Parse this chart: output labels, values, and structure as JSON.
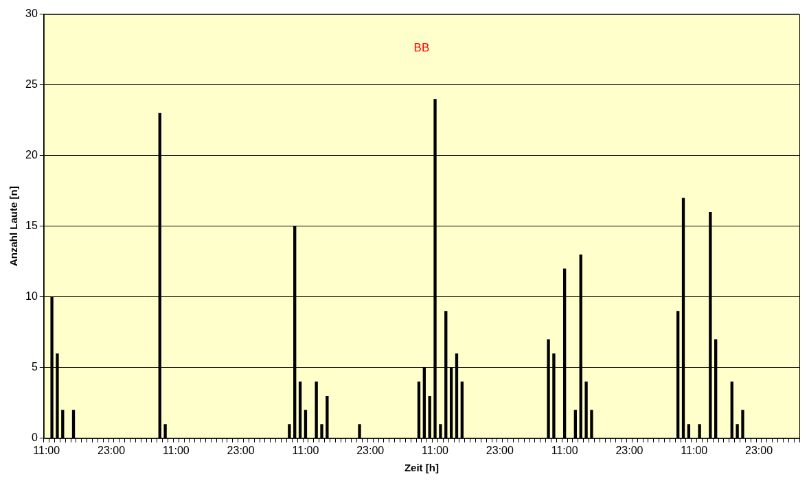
{
  "chart_data": {
    "type": "bar",
    "title": "BB",
    "xlabel": "Zeit [h]",
    "ylabel": "Anzahl Laute [n]",
    "categories": [
      "11:00",
      null,
      null,
      null,
      null,
      null,
      null,
      null,
      null,
      null,
      null,
      null,
      "23:00",
      null,
      null,
      null,
      null,
      null,
      null,
      null,
      null,
      null,
      null,
      null,
      "11:00",
      null,
      null,
      null,
      null,
      null,
      null,
      null,
      null,
      null,
      null,
      null,
      "23:00",
      null,
      null,
      null,
      null,
      null,
      null,
      null,
      null,
      null,
      null,
      null,
      "11:00",
      null,
      null,
      null,
      null,
      null,
      null,
      null,
      null,
      null,
      null,
      null,
      "23:00",
      null,
      null,
      null,
      null,
      null,
      null,
      null,
      null,
      null,
      null,
      null,
      "11:00",
      null,
      null,
      null,
      null,
      null,
      null,
      null,
      null,
      null,
      null,
      null,
      "23:00",
      null,
      null,
      null,
      null,
      null,
      null,
      null,
      null,
      null,
      null,
      null,
      "11:00",
      null,
      null,
      null,
      null,
      null,
      null,
      null,
      null,
      null,
      null,
      null,
      "23:00",
      null,
      null,
      null,
      null,
      null,
      null,
      null,
      null,
      null,
      null,
      null,
      "11:00",
      null,
      null,
      null,
      null,
      null,
      null,
      null,
      null,
      null,
      null,
      null,
      "23:00",
      null,
      null,
      null,
      null,
      null,
      null,
      null
    ],
    "values": [
      0,
      10,
      6,
      2,
      0,
      2,
      0,
      0,
      0,
      0,
      0,
      0,
      0,
      0,
      0,
      0,
      0,
      0,
      0,
      0,
      0,
      23,
      1,
      0,
      0,
      0,
      0,
      0,
      0,
      0,
      0,
      0,
      0,
      0,
      0,
      0,
      0,
      0,
      0,
      0,
      0,
      0,
      0,
      0,
      0,
      1,
      15,
      4,
      2,
      0,
      4,
      1,
      3,
      0,
      0,
      0,
      0,
      0,
      1,
      0,
      0,
      0,
      0,
      0,
      0,
      0,
      0,
      0,
      0,
      4,
      5,
      3,
      24,
      1,
      9,
      5,
      6,
      4,
      0,
      0,
      0,
      0,
      0,
      0,
      0,
      0,
      0,
      0,
      0,
      0,
      0,
      0,
      0,
      7,
      6,
      0,
      12,
      0,
      2,
      13,
      4,
      2,
      0,
      0,
      0,
      0,
      0,
      0,
      0,
      0,
      0,
      0,
      0,
      0,
      0,
      0,
      0,
      9,
      17,
      1,
      0,
      1,
      0,
      16,
      7,
      0,
      0,
      4,
      1,
      2,
      0,
      0,
      0,
      0,
      0,
      0,
      0,
      0,
      0,
      0
    ],
    "color": "#000000",
    "ylim": [
      0,
      30
    ],
    "yticks": [
      0,
      5,
      10,
      15,
      20,
      25,
      30
    ],
    "grid": "y",
    "legend": false
  }
}
